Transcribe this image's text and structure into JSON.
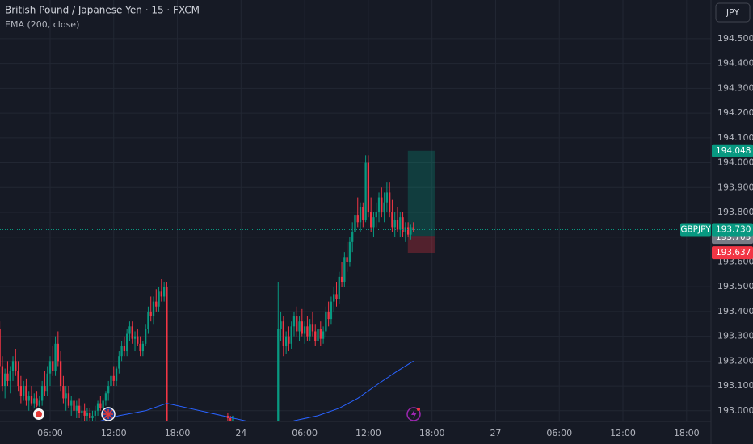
{
  "chart_data": {
    "type": "candlestick",
    "title": "British Pound / Japanese Yen · 15 · FXCM",
    "indicator": "EMA (200, close)",
    "currency": "JPY",
    "colors": {
      "up": "#089981",
      "down": "#f23645",
      "ema": "#2962ff"
    },
    "xlim": [
      5.12,
      273.2
    ],
    "xticks": [
      {
        "value": 24,
        "label": "06:00"
      },
      {
        "value": 48,
        "label": "12:00"
      },
      {
        "value": 72,
        "label": "18:00"
      },
      {
        "value": 96,
        "label": "24"
      },
      {
        "value": 120,
        "label": "06:00"
      },
      {
        "value": 144,
        "label": "12:00"
      },
      {
        "value": 168,
        "label": "18:00"
      },
      {
        "value": 192,
        "label": "27"
      },
      {
        "value": 216,
        "label": "06:00"
      },
      {
        "value": 240,
        "label": "12:00"
      },
      {
        "value": 264,
        "label": "18:00"
      }
    ],
    "ylim": [
      192.957,
      194.656
    ],
    "yticks": [
      {
        "value": 193.0,
        "label": "193.000"
      },
      {
        "value": 193.1,
        "label": "193.100"
      },
      {
        "value": 193.2,
        "label": "193.200"
      },
      {
        "value": 193.3,
        "label": "193.300"
      },
      {
        "value": 193.4,
        "label": "193.400"
      },
      {
        "value": 193.5,
        "label": "193.500"
      },
      {
        "value": 193.6,
        "label": "193.600"
      },
      {
        "value": 193.7,
        "label": "193.700"
      },
      {
        "value": 193.8,
        "label": "193.800"
      },
      {
        "value": 193.9,
        "label": "193.900"
      },
      {
        "value": 194.0,
        "label": "194.000"
      },
      {
        "value": 194.1,
        "label": "194.100"
      },
      {
        "value": 194.2,
        "label": "194.200"
      },
      {
        "value": 194.3,
        "label": "194.300"
      },
      {
        "value": 194.4,
        "label": "194.400"
      },
      {
        "value": 194.5,
        "label": "194.500"
      }
    ],
    "grid": true,
    "candles": [
      [
        5,
        193.33,
        193.36,
        193.15,
        193.18
      ],
      [
        6,
        193.18,
        193.22,
        193.08,
        193.1
      ],
      [
        7,
        193.1,
        193.17,
        193.05,
        193.15
      ],
      [
        8,
        193.15,
        193.2,
        193.1,
        193.12
      ],
      [
        9,
        193.12,
        193.18,
        193.07,
        193.16
      ],
      [
        10,
        193.16,
        193.22,
        193.12,
        193.2
      ],
      [
        11,
        193.2,
        193.25,
        193.14,
        193.16
      ],
      [
        12,
        193.16,
        193.2,
        193.08,
        193.1
      ],
      [
        13,
        193.1,
        193.14,
        193.03,
        193.06
      ],
      [
        14,
        193.06,
        193.12,
        193.04,
        193.1
      ],
      [
        15,
        193.1,
        193.13,
        193.02,
        193.04
      ],
      [
        16,
        193.04,
        193.08,
        193.0,
        193.06
      ],
      [
        17,
        193.06,
        193.1,
        193.02,
        193.03
      ],
      [
        18,
        193.03,
        193.07,
        192.99,
        193.05
      ],
      [
        19,
        193.05,
        193.08,
        193.0,
        193.02
      ],
      [
        20,
        193.02,
        193.06,
        192.98,
        193.04
      ],
      [
        21,
        193.04,
        193.12,
        193.02,
        193.1
      ],
      [
        22,
        193.1,
        193.16,
        193.06,
        193.08
      ],
      [
        23,
        193.08,
        193.18,
        193.06,
        193.15
      ],
      [
        24,
        193.15,
        193.22,
        193.1,
        193.2
      ],
      [
        25,
        193.2,
        193.26,
        193.14,
        193.16
      ],
      [
        26,
        193.16,
        193.3,
        193.14,
        193.27
      ],
      [
        27,
        193.27,
        193.32,
        193.18,
        193.2
      ],
      [
        28,
        193.2,
        193.24,
        193.08,
        193.1
      ],
      [
        29,
        193.1,
        193.14,
        193.03,
        193.05
      ],
      [
        30,
        193.05,
        193.1,
        193.0,
        193.07
      ],
      [
        31,
        193.07,
        193.1,
        193.01,
        193.02
      ],
      [
        32,
        193.02,
        193.06,
        192.98,
        193.04
      ],
      [
        33,
        193.04,
        193.07,
        192.99,
        193.0
      ],
      [
        34,
        193.0,
        193.04,
        192.97,
        193.02
      ],
      [
        35,
        193.02,
        193.05,
        192.97,
        192.99
      ],
      [
        36,
        192.99,
        193.02,
        192.96,
        193.0
      ],
      [
        37,
        193.0,
        193.03,
        192.96,
        192.98
      ],
      [
        38,
        192.98,
        193.01,
        192.96,
        192.99
      ],
      [
        39,
        192.99,
        193.01,
        192.96,
        192.97
      ],
      [
        40,
        192.97,
        193.0,
        192.96,
        192.98
      ],
      [
        41,
        192.98,
        193.02,
        192.96,
        193.0
      ],
      [
        42,
        193.0,
        193.04,
        192.98,
        193.03
      ],
      [
        43,
        193.03,
        193.06,
        193.0,
        193.01
      ],
      [
        44,
        193.01,
        193.05,
        192.99,
        193.04
      ],
      [
        45,
        193.04,
        193.08,
        193.02,
        193.07
      ],
      [
        46,
        193.07,
        193.12,
        193.04,
        193.1
      ],
      [
        47,
        193.1,
        193.16,
        193.08,
        193.14
      ],
      [
        48,
        193.14,
        193.18,
        193.1,
        193.12
      ],
      [
        49,
        193.12,
        193.18,
        193.1,
        193.17
      ],
      [
        50,
        193.17,
        193.24,
        193.15,
        193.22
      ],
      [
        51,
        193.22,
        193.28,
        193.2,
        193.26
      ],
      [
        52,
        193.26,
        193.3,
        193.22,
        193.24
      ],
      [
        53,
        193.24,
        193.33,
        193.22,
        193.31
      ],
      [
        54,
        193.31,
        193.36,
        193.28,
        193.34
      ],
      [
        55,
        193.34,
        193.36,
        193.27,
        193.29
      ],
      [
        56,
        193.29,
        193.32,
        193.24,
        193.3
      ],
      [
        57,
        193.3,
        193.33,
        193.26,
        193.27
      ],
      [
        58,
        193.27,
        193.3,
        193.22,
        193.24
      ],
      [
        59,
        193.24,
        193.28,
        193.22,
        193.27
      ],
      [
        60,
        193.27,
        193.35,
        193.26,
        193.33
      ],
      [
        61,
        193.33,
        193.42,
        193.31,
        193.4
      ],
      [
        62,
        193.4,
        193.46,
        193.36,
        193.38
      ],
      [
        63,
        193.38,
        193.46,
        193.35,
        193.44
      ],
      [
        64,
        193.44,
        193.49,
        193.4,
        193.42
      ],
      [
        65,
        193.42,
        193.5,
        193.4,
        193.48
      ],
      [
        66,
        193.48,
        193.53,
        193.44,
        193.46
      ],
      [
        67,
        193.46,
        193.52,
        193.44,
        193.5
      ],
      [
        68,
        193.5,
        193.52,
        192.94,
        192.96
      ],
      [
        91,
        192.98,
        192.99,
        192.96,
        192.97
      ],
      [
        92,
        192.97,
        192.98,
        192.96,
        192.96
      ],
      [
        93,
        192.96,
        192.98,
        192.95,
        192.98
      ],
      [
        110,
        192.96,
        193.52,
        192.95,
        193.33
      ],
      [
        111,
        193.33,
        193.4,
        193.28,
        193.36
      ],
      [
        112,
        193.36,
        193.38,
        193.22,
        193.26
      ],
      [
        113,
        193.26,
        193.32,
        193.23,
        193.3
      ],
      [
        114,
        193.3,
        193.34,
        193.24,
        193.27
      ],
      [
        115,
        193.27,
        193.36,
        193.25,
        193.34
      ],
      [
        116,
        193.34,
        193.4,
        193.3,
        193.38
      ],
      [
        117,
        193.38,
        193.42,
        193.3,
        193.32
      ],
      [
        118,
        193.32,
        193.38,
        193.28,
        193.36
      ],
      [
        119,
        193.36,
        193.41,
        193.3,
        193.31
      ],
      [
        120,
        193.31,
        193.36,
        193.27,
        193.34
      ],
      [
        121,
        193.34,
        193.38,
        193.28,
        193.3
      ],
      [
        122,
        193.3,
        193.37,
        193.28,
        193.35
      ],
      [
        123,
        193.35,
        193.4,
        193.3,
        193.32
      ],
      [
        124,
        193.32,
        193.35,
        193.26,
        193.28
      ],
      [
        125,
        193.28,
        193.34,
        193.25,
        193.33
      ],
      [
        126,
        193.33,
        193.36,
        193.26,
        193.29
      ],
      [
        127,
        193.29,
        193.34,
        193.27,
        193.32
      ],
      [
        128,
        193.32,
        193.42,
        193.3,
        193.4
      ],
      [
        129,
        193.4,
        193.44,
        193.34,
        193.37
      ],
      [
        130,
        193.37,
        193.46,
        193.35,
        193.44
      ],
      [
        131,
        193.44,
        193.5,
        193.4,
        193.47
      ],
      [
        132,
        193.47,
        193.52,
        193.42,
        193.45
      ],
      [
        133,
        193.45,
        193.56,
        193.43,
        193.54
      ],
      [
        134,
        193.54,
        193.6,
        193.5,
        193.52
      ],
      [
        135,
        193.52,
        193.64,
        193.5,
        193.62
      ],
      [
        136,
        193.62,
        193.68,
        193.56,
        193.6
      ],
      [
        137,
        193.6,
        193.7,
        193.58,
        193.68
      ],
      [
        138,
        193.68,
        193.76,
        193.64,
        193.72
      ],
      [
        139,
        193.72,
        193.82,
        193.7,
        193.79
      ],
      [
        140,
        193.79,
        193.86,
        193.74,
        193.76
      ],
      [
        141,
        193.76,
        193.84,
        193.72,
        193.82
      ],
      [
        142,
        193.82,
        193.84,
        193.74,
        193.77
      ],
      [
        143,
        193.77,
        194.03,
        193.76,
        194.0
      ],
      [
        144,
        194.0,
        194.03,
        193.78,
        193.8
      ],
      [
        145,
        193.8,
        193.86,
        193.72,
        193.74
      ],
      [
        146,
        193.74,
        193.8,
        193.7,
        193.78
      ],
      [
        147,
        193.78,
        193.84,
        193.74,
        193.8
      ],
      [
        148,
        193.8,
        193.88,
        193.76,
        193.86
      ],
      [
        149,
        193.86,
        193.9,
        193.78,
        193.8
      ],
      [
        150,
        193.8,
        193.88,
        193.76,
        193.84
      ],
      [
        151,
        193.84,
        193.92,
        193.8,
        193.88
      ],
      [
        152,
        193.88,
        193.92,
        193.78,
        193.8
      ],
      [
        153,
        193.8,
        193.85,
        193.72,
        193.74
      ],
      [
        154,
        193.74,
        193.8,
        193.7,
        193.77
      ],
      [
        155,
        193.77,
        193.82,
        193.72,
        193.73
      ],
      [
        156,
        193.73,
        193.8,
        193.7,
        193.78
      ],
      [
        157,
        193.78,
        193.8,
        193.7,
        193.72
      ],
      [
        158,
        193.72,
        193.76,
        193.68,
        193.74
      ],
      [
        159,
        193.74,
        193.76,
        193.7,
        193.71
      ],
      [
        160,
        193.71,
        193.75,
        193.69,
        193.74
      ],
      [
        161,
        193.74,
        193.76,
        193.72,
        193.73
      ]
    ],
    "ema": {
      "x": [
        40,
        50,
        60,
        68,
        110,
        116,
        125,
        133,
        140,
        148,
        155,
        161
      ],
      "values": [
        192.95,
        192.98,
        193.0,
        193.03,
        192.93,
        192.96,
        192.98,
        193.01,
        193.05,
        193.11,
        193.16,
        193.2
      ]
    },
    "last_price": {
      "symbol": "GBPJPY",
      "value": 193.73,
      "value_label": "193.730"
    },
    "position": {
      "target": 194.048,
      "entry": 193.705,
      "stop": 193.637,
      "x_start": 158.9,
      "x_end": 169
    }
  }
}
